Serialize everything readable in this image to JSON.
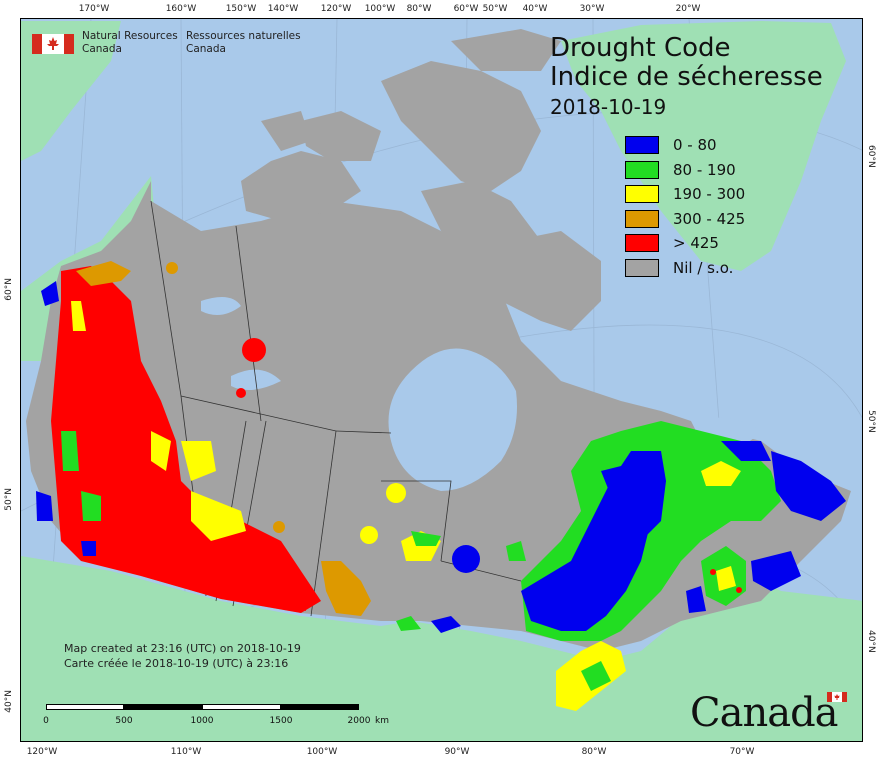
{
  "map": {
    "title_en": "Drought Code",
    "title_fr": "Indice de sécheresse",
    "date": "2018-10-19",
    "agency_en_1": "Natural Resources",
    "agency_en_2": "Canada",
    "agency_fr_1": "Ressources naturelles",
    "agency_fr_2": "Canada",
    "credit_en": "Map created at 23:16 (UTC) on 2018-10-19",
    "credit_fr": "Carte créée le 2018-10-19 (UTC) à 23:16",
    "wordmark": "Canada",
    "colors": {
      "ocean": "#a9c9ea",
      "land_other": "#9fe0b4",
      "canada_nodata": "#a3a3a3",
      "boundary": "#333333"
    }
  },
  "legend": [
    {
      "label": "0 - 80",
      "color": "#0000ee"
    },
    {
      "label": "80 - 190",
      "color": "#22dd22"
    },
    {
      "label": "190 - 300",
      "color": "#ffff00"
    },
    {
      "label": "300 - 425",
      "color": "#dd9900"
    },
    {
      "label": "> 425",
      "color": "#ff0000"
    },
    {
      "label": "Nil / s.o.",
      "color": "#a3a3a3"
    }
  ],
  "graticule": {
    "top": [
      "170°W",
      "160°W",
      "150°W",
      "140°W",
      "120°W",
      "100°W",
      "80°W",
      "60°W",
      "50°W",
      "40°W",
      "30°W",
      "20°W"
    ],
    "bottom": [
      "120°W",
      "110°W",
      "100°W",
      "90°W",
      "80°W",
      "70°W"
    ],
    "left": [
      "60°N",
      "50°N",
      "40°N"
    ],
    "right": [
      "60°N",
      "50°N",
      "40°N"
    ]
  },
  "scale": {
    "labels": [
      "0",
      "500",
      "1000",
      "1500",
      "2000"
    ],
    "unit": "km"
  }
}
